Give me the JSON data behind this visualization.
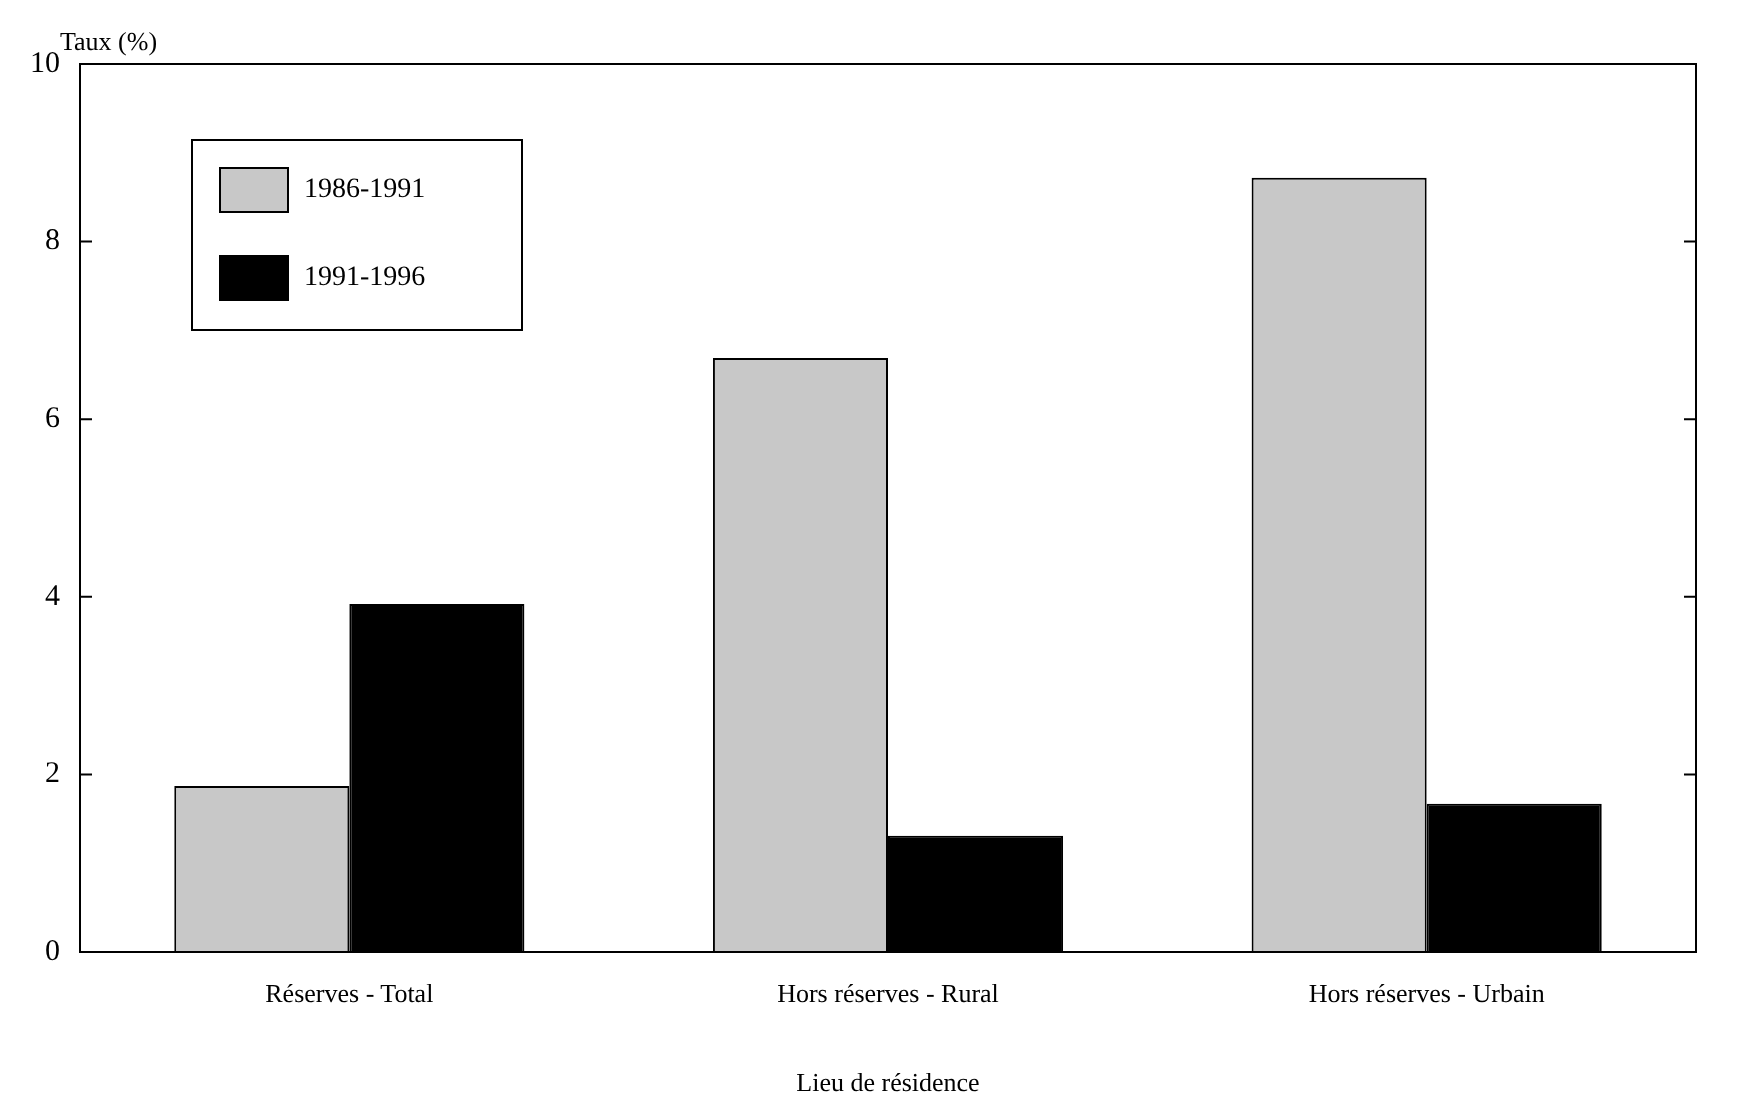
{
  "chart_data": {
    "type": "bar",
    "xlabel": "Lieu de résidence",
    "ylabel": "Taux (%)",
    "categories": [
      "Réserves - Total",
      "Hors réserves - Rural",
      "Hors réserves - Urbain"
    ],
    "series": [
      {
        "name": "1986-1991",
        "color": "#c8c8c8",
        "values": [
          1.87,
          6.69,
          8.72
        ]
      },
      {
        "name": "1991-1996",
        "color": "#000000",
        "values": [
          3.92,
          1.31,
          1.67
        ]
      }
    ],
    "ylim": [
      0,
      10
    ],
    "yticks": [
      0,
      2,
      4,
      6,
      8,
      10
    ],
    "grid": false,
    "legend": "top left"
  }
}
